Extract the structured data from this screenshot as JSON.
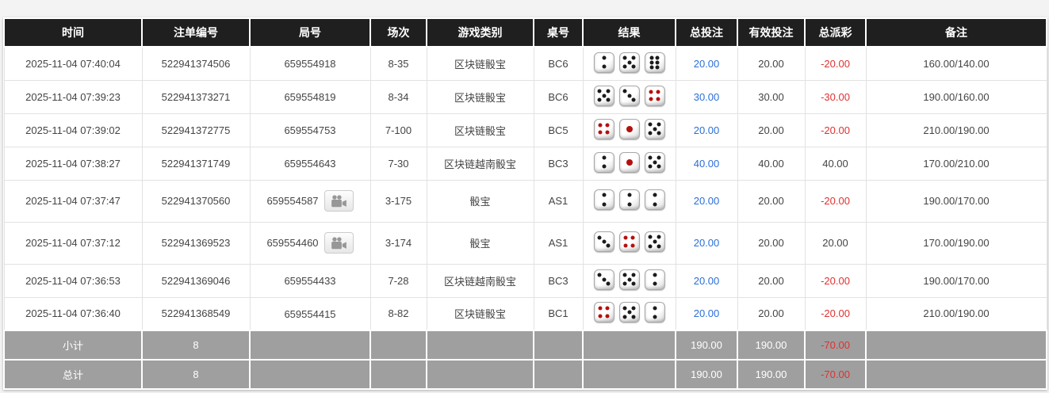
{
  "colors": {
    "header_bg": "#1f1f1f",
    "summary_bg": "#9f9f9f",
    "accent_blue": "#2a6fd8",
    "loss_red": "#e03030"
  },
  "columns": [
    {
      "key": "time",
      "label": "时间"
    },
    {
      "key": "bet-id",
      "label": "注单编号"
    },
    {
      "key": "round",
      "label": "局号"
    },
    {
      "key": "session",
      "label": "场次"
    },
    {
      "key": "game-type",
      "label": "游戏类别"
    },
    {
      "key": "table-no",
      "label": "桌号"
    },
    {
      "key": "result",
      "label": "结果"
    },
    {
      "key": "total-bet",
      "label": "总投注"
    },
    {
      "key": "valid-bet",
      "label": "有效投注"
    },
    {
      "key": "payout",
      "label": "总派彩"
    },
    {
      "key": "remark",
      "label": "备注"
    }
  ],
  "icons": {
    "video_replay": "video-camera-icon"
  },
  "rows": [
    {
      "time": "2025-11-04 07:40:04",
      "bet_id": "522941374506",
      "round": "659554918",
      "has_video": false,
      "session": "8-35",
      "game": "区块链骰宝",
      "table": "BC6",
      "dice": [
        2,
        5,
        6
      ],
      "total_bet": "20.00",
      "valid_bet": "20.00",
      "payout": "-20.00",
      "remark": "160.00/140.00"
    },
    {
      "time": "2025-11-04 07:39:23",
      "bet_id": "522941373271",
      "round": "659554819",
      "has_video": false,
      "session": "8-34",
      "game": "区块链骰宝",
      "table": "BC6",
      "dice": [
        5,
        3,
        4
      ],
      "total_bet": "30.00",
      "valid_bet": "30.00",
      "payout": "-30.00",
      "remark": "190.00/160.00"
    },
    {
      "time": "2025-11-04 07:39:02",
      "bet_id": "522941372775",
      "round": "659554753",
      "has_video": false,
      "session": "7-100",
      "game": "区块链骰宝",
      "table": "BC5",
      "dice": [
        4,
        1,
        5
      ],
      "total_bet": "20.00",
      "valid_bet": "20.00",
      "payout": "-20.00",
      "remark": "210.00/190.00"
    },
    {
      "time": "2025-11-04 07:38:27",
      "bet_id": "522941371749",
      "round": "659554643",
      "has_video": false,
      "session": "7-30",
      "game": "区块链越南骰宝",
      "table": "BC3",
      "dice": [
        2,
        1,
        5
      ],
      "total_bet": "40.00",
      "valid_bet": "40.00",
      "payout": "40.00",
      "remark": "170.00/210.00"
    },
    {
      "time": "2025-11-04 07:37:47",
      "bet_id": "522941370560",
      "round": "659554587",
      "has_video": true,
      "session": "3-175",
      "game": "骰宝",
      "table": "AS1",
      "dice": [
        2,
        2,
        2
      ],
      "total_bet": "20.00",
      "valid_bet": "20.00",
      "payout": "-20.00",
      "remark": "190.00/170.00"
    },
    {
      "time": "2025-11-04 07:37:12",
      "bet_id": "522941369523",
      "round": "659554460",
      "has_video": true,
      "session": "3-174",
      "game": "骰宝",
      "table": "AS1",
      "dice": [
        3,
        4,
        5
      ],
      "total_bet": "20.00",
      "valid_bet": "20.00",
      "payout": "20.00",
      "remark": "170.00/190.00"
    },
    {
      "time": "2025-11-04 07:36:53",
      "bet_id": "522941369046",
      "round": "659554433",
      "has_video": false,
      "session": "7-28",
      "game": "区块链越南骰宝",
      "table": "BC3",
      "dice": [
        3,
        5,
        2
      ],
      "total_bet": "20.00",
      "valid_bet": "20.00",
      "payout": "-20.00",
      "remark": "190.00/170.00"
    },
    {
      "time": "2025-11-04 07:36:40",
      "bet_id": "522941368549",
      "round": "659554415",
      "has_video": false,
      "session": "8-82",
      "game": "区块链骰宝",
      "table": "BC1",
      "dice": [
        4,
        5,
        2
      ],
      "total_bet": "20.00",
      "valid_bet": "20.00",
      "payout": "-20.00",
      "remark": "210.00/190.00"
    }
  ],
  "summary": [
    {
      "label": "小计",
      "count": "8",
      "total_bet": "190.00",
      "valid_bet": "190.00",
      "payout": "-70.00"
    },
    {
      "label": "总计",
      "count": "8",
      "total_bet": "190.00",
      "valid_bet": "190.00",
      "payout": "-70.00"
    }
  ]
}
